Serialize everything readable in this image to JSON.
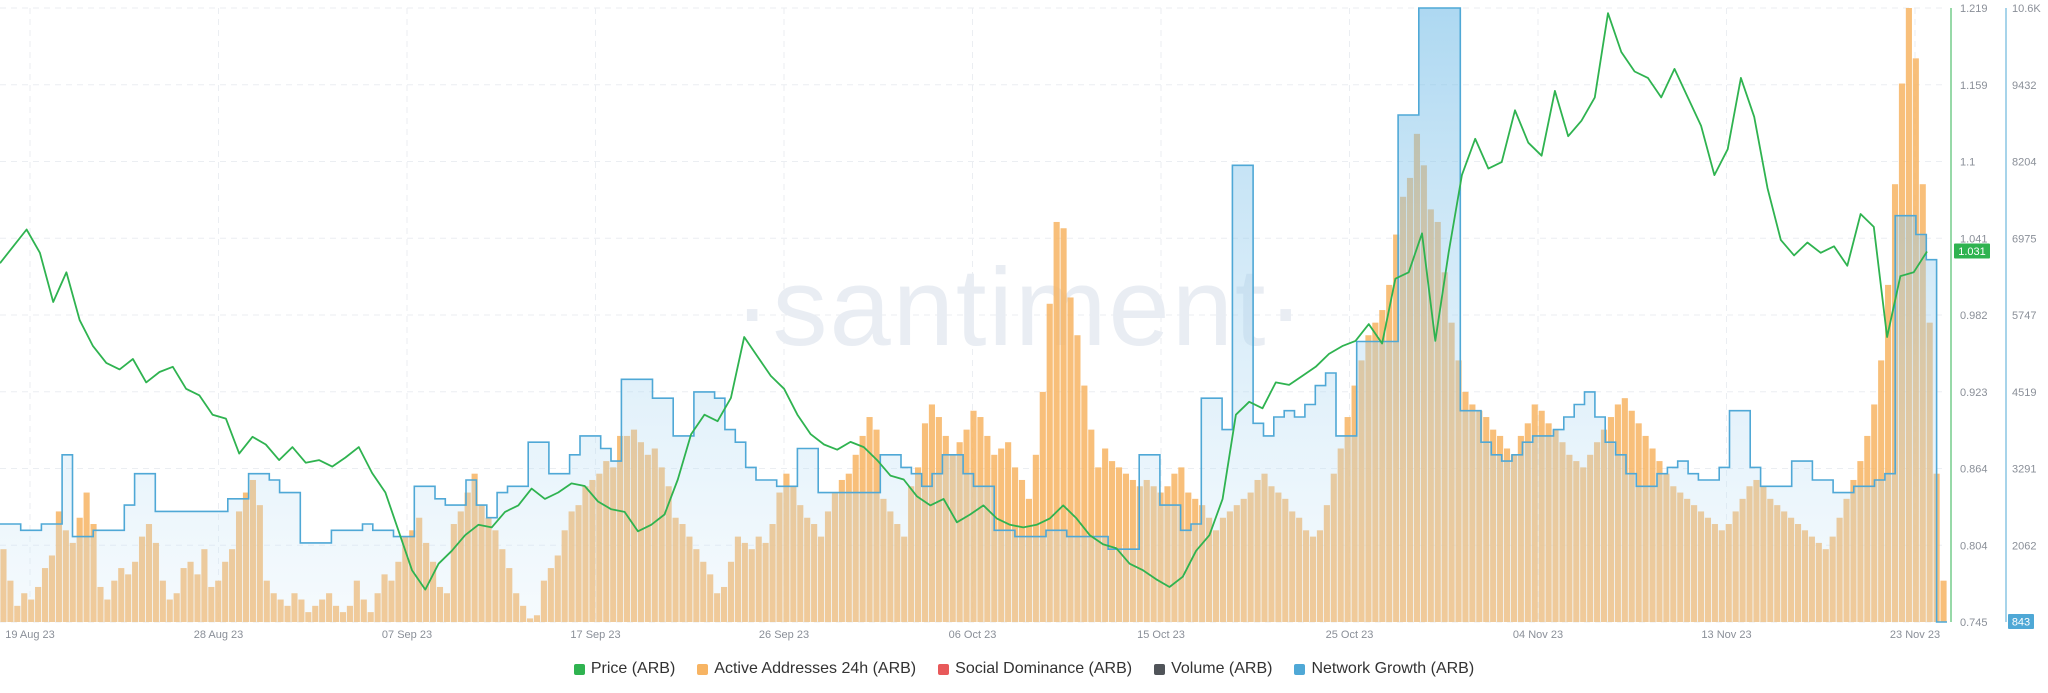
{
  "watermark": "·santiment·",
  "chart_data": {
    "type": "line",
    "x_ticks": [
      "19 Aug 23",
      "28 Aug 23",
      "07 Sep 23",
      "17 Sep 23",
      "26 Sep 23",
      "06 Oct 23",
      "15 Oct 23",
      "25 Oct 23",
      "04 Nov 23",
      "13 Nov 23",
      "23 Nov 23"
    ],
    "y_left_ticks": [
      "1.219",
      "1.159",
      "1.1",
      "1.041",
      "0.982",
      "0.923",
      "0.864",
      "0.804",
      "0.745"
    ],
    "y_left_range": [
      0.745,
      1.219
    ],
    "y_right_ticks": [
      "10.6K",
      "9432",
      "8204",
      "6975",
      "5747",
      "4519",
      "3291",
      "2062",
      "843"
    ],
    "y_right_range": [
      843,
      10600
    ],
    "current_price_label": "1.031",
    "current_growth_label": "843",
    "series": [
      {
        "name": "Price (ARB)",
        "type": "line",
        "axis": "left",
        "color": "#2fb350",
        "values": [
          1.022,
          1.035,
          1.048,
          1.03,
          0.992,
          1.015,
          0.978,
          0.958,
          0.945,
          0.94,
          0.948,
          0.93,
          0.938,
          0.942,
          0.925,
          0.92,
          0.905,
          0.902,
          0.875,
          0.888,
          0.882,
          0.87,
          0.88,
          0.868,
          0.87,
          0.865,
          0.872,
          0.88,
          0.86,
          0.845,
          0.815,
          0.785,
          0.77,
          0.79,
          0.8,
          0.812,
          0.82,
          0.818,
          0.83,
          0.835,
          0.848,
          0.84,
          0.845,
          0.852,
          0.85,
          0.838,
          0.832,
          0.83,
          0.815,
          0.82,
          0.828,
          0.855,
          0.89,
          0.905,
          0.9,
          0.918,
          0.965,
          0.95,
          0.935,
          0.925,
          0.905,
          0.89,
          0.882,
          0.878,
          0.884,
          0.88,
          0.87,
          0.858,
          0.855,
          0.842,
          0.835,
          0.84,
          0.822,
          0.828,
          0.835,
          0.825,
          0.82,
          0.818,
          0.82,
          0.825,
          0.835,
          0.825,
          0.812,
          0.805,
          0.802,
          0.79,
          0.785,
          0.778,
          0.772,
          0.78,
          0.8,
          0.812,
          0.84,
          0.905,
          0.915,
          0.91,
          0.93,
          0.928,
          0.935,
          0.942,
          0.952,
          0.958,
          0.962,
          0.975,
          0.96,
          1.01,
          1.015,
          1.045,
          0.962,
          1.03,
          1.09,
          1.118,
          1.095,
          1.1,
          1.14,
          1.115,
          1.105,
          1.155,
          1.12,
          1.132,
          1.15,
          1.215,
          1.185,
          1.17,
          1.165,
          1.15,
          1.172,
          1.15,
          1.128,
          1.09,
          1.11,
          1.165,
          1.135,
          1.08,
          1.04,
          1.028,
          1.038,
          1.03,
          1.035,
          1.02,
          1.06,
          1.05,
          0.965,
          1.012,
          1.015,
          1.031
        ]
      },
      {
        "name": "Active Addresses 24h (ARB)",
        "type": "bar",
        "axis": "right",
        "color": "#f7b463",
        "values": [
          2000,
          1500,
          1100,
          1300,
          1200,
          1400,
          1700,
          1900,
          2600,
          2300,
          2100,
          2500,
          2900,
          2400,
          1400,
          1200,
          1500,
          1700,
          1600,
          1800,
          2200,
          2400,
          2100,
          1500,
          1200,
          1300,
          1700,
          1800,
          1600,
          2000,
          1400,
          1500,
          1800,
          2000,
          2600,
          2900,
          3100,
          2700,
          1500,
          1300,
          1200,
          1100,
          1300,
          1200,
          1000,
          1100,
          1200,
          1300,
          1100,
          1000,
          1100,
          1500,
          1200,
          1000,
          1300,
          1600,
          1500,
          1800,
          2200,
          2300,
          2500,
          2100,
          1800,
          1400,
          1300,
          2400,
          2600,
          2900,
          3200,
          2700,
          2500,
          2300,
          2000,
          1700,
          1300,
          1100,
          900,
          950,
          1500,
          1700,
          1900,
          2300,
          2600,
          2700,
          3000,
          3100,
          3200,
          3400,
          3300,
          3800,
          3800,
          3900,
          3700,
          3500,
          3600,
          3300,
          3000,
          2500,
          2400,
          2200,
          2000,
          1800,
          1600,
          1300,
          1400,
          1800,
          2200,
          2100,
          2000,
          2200,
          2100,
          2400,
          2900,
          3200,
          3000,
          2700,
          2500,
          2400,
          2200,
          2600,
          2900,
          3100,
          3200,
          3500,
          3800,
          4100,
          3900,
          2800,
          2600,
          2400,
          2200,
          3000,
          3300,
          4000,
          4300,
          4100,
          3800,
          3500,
          3700,
          3900,
          4200,
          4100,
          3800,
          3500,
          3600,
          3700,
          3300,
          3100,
          2800,
          3500,
          4500,
          5900,
          7200,
          7100,
          6000,
          5400,
          4600,
          3900,
          3300,
          3600,
          3400,
          3300,
          3200,
          3100,
          3000,
          3100,
          3000,
          2900,
          3000,
          3200,
          3300,
          2900,
          2800,
          2700,
          2500,
          2300,
          2500,
          2600,
          2700,
          2800,
          2900,
          3100,
          3200,
          3000,
          2900,
          2800,
          2600,
          2500,
          2300,
          2200,
          2300,
          2700,
          3200,
          3600,
          4100,
          4600,
          5000,
          5400,
          5600,
          5800,
          6200,
          7000,
          7600,
          7900,
          8600,
          8100,
          7400,
          7200,
          6400,
          5600,
          5000,
          4500,
          4300,
          4200,
          4100,
          3900,
          3800,
          3600,
          3500,
          3800,
          4000,
          4300,
          4200,
          4000,
          3900,
          3700,
          3500,
          3400,
          3300,
          3500,
          3700,
          3900,
          4100,
          4300,
          4400,
          4200,
          4000,
          3800,
          3600,
          3400,
          3200,
          3000,
          2900,
          2800,
          2700,
          2600,
          2500,
          2400,
          2300,
          2400,
          2600,
          2800,
          3000,
          3100,
          3000,
          2800,
          2700,
          2600,
          2500,
          2400,
          2300,
          2200,
          2100,
          2000,
          2200,
          2500,
          2800,
          3100,
          3400,
          3800,
          4300,
          5000,
          6200,
          7800,
          9400,
          10600,
          9800,
          7800,
          5600,
          3200,
          1500
        ]
      },
      {
        "name": "Social Dominance (ARB)",
        "type": "line",
        "axis": "right",
        "color": "#e8595a",
        "values": []
      },
      {
        "name": "Volume (ARB)",
        "type": "line",
        "axis": "right",
        "color": "#505459",
        "values": []
      },
      {
        "name": "Network Growth (ARB)",
        "type": "step-area",
        "axis": "right",
        "color": "#4fa8d6",
        "values": [
          2400,
          2400,
          2300,
          2300,
          2400,
          2400,
          3500,
          2200,
          2200,
          2300,
          2300,
          2300,
          2700,
          3200,
          3200,
          2600,
          2600,
          2600,
          2600,
          2600,
          2600,
          2600,
          2800,
          2800,
          3200,
          3200,
          3100,
          2900,
          2900,
          2100,
          2100,
          2100,
          2300,
          2300,
          2300,
          2400,
          2300,
          2300,
          2200,
          2200,
          3000,
          3000,
          2800,
          2700,
          2700,
          3100,
          2700,
          2500,
          2900,
          3000,
          3000,
          3700,
          3700,
          3200,
          3200,
          3500,
          3800,
          3800,
          3600,
          3400,
          4700,
          4700,
          4700,
          4400,
          4400,
          3800,
          3800,
          4500,
          4500,
          4400,
          3900,
          3700,
          3300,
          3100,
          3100,
          3000,
          3000,
          3600,
          3600,
          2900,
          2900,
          2900,
          2900,
          2900,
          2900,
          3500,
          3500,
          3300,
          3200,
          3000,
          3200,
          3500,
          3500,
          3200,
          3000,
          3000,
          2300,
          2300,
          2200,
          2200,
          2200,
          2300,
          2300,
          2200,
          2200,
          2200,
          2200,
          2000,
          2000,
          2000,
          3500,
          3500,
          2700,
          2700,
          2300,
          2400,
          4400,
          4400,
          3900,
          8100,
          8100,
          4000,
          3800,
          4100,
          4200,
          4100,
          4300,
          4600,
          4800,
          3800,
          3800,
          5300,
          5300,
          5300,
          5300,
          8900,
          8900,
          10600,
          10600,
          10600,
          10600,
          4200,
          4200,
          3700,
          3500,
          3400,
          3500,
          3700,
          3800,
          3800,
          3900,
          4100,
          4300,
          4500,
          4100,
          3700,
          3500,
          3200,
          3000,
          3000,
          3200,
          3300,
          3400,
          3200,
          3100,
          3100,
          3300,
          4200,
          4200,
          3300,
          3000,
          3000,
          3000,
          3400,
          3400,
          3100,
          3100,
          2900,
          2900,
          3000,
          3000,
          3100,
          3200,
          7300,
          7300,
          7000,
          6600,
          843
        ]
      }
    ]
  },
  "legend": [
    {
      "label": "Price (ARB)",
      "color": "#2fb350"
    },
    {
      "label": "Active Addresses 24h (ARB)",
      "color": "#f7b463"
    },
    {
      "label": "Social Dominance (ARB)",
      "color": "#e8595a"
    },
    {
      "label": "Volume (ARB)",
      "color": "#505459"
    },
    {
      "label": "Network Growth (ARB)",
      "color": "#4fa8d6"
    }
  ]
}
